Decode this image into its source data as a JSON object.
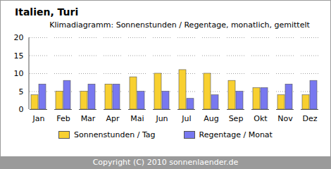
{
  "chart_data": {
    "type": "bar",
    "title": "Italien, Turi",
    "subtitle": "Klimadiagramm: Sonnenstunden / Regentage, monatlich, gemittelt",
    "caption": "Copyright (C) 2010 sonnenlaender.de",
    "categories": [
      "Jan",
      "Feb",
      "Mar",
      "Apr",
      "Mai",
      "Jun",
      "Jul",
      "Aug",
      "Sep",
      "Okt",
      "Nov",
      "Dez"
    ],
    "series": [
      {
        "name": "Sonnenstunden / Tag",
        "color": "#f8d030",
        "values": [
          4,
          5,
          5,
          7,
          9,
          10,
          11,
          10,
          8,
          6,
          4,
          4
        ]
      },
      {
        "name": "Regentage / Monat",
        "color": "#7878f0",
        "values": [
          7,
          8,
          7,
          7,
          5,
          5,
          3,
          4,
          5,
          6,
          7,
          8
        ]
      }
    ],
    "ylim": [
      0,
      20
    ],
    "yticks": [
      0,
      5,
      10,
      15,
      20
    ],
    "grid": true,
    "legend": "bottom"
  }
}
